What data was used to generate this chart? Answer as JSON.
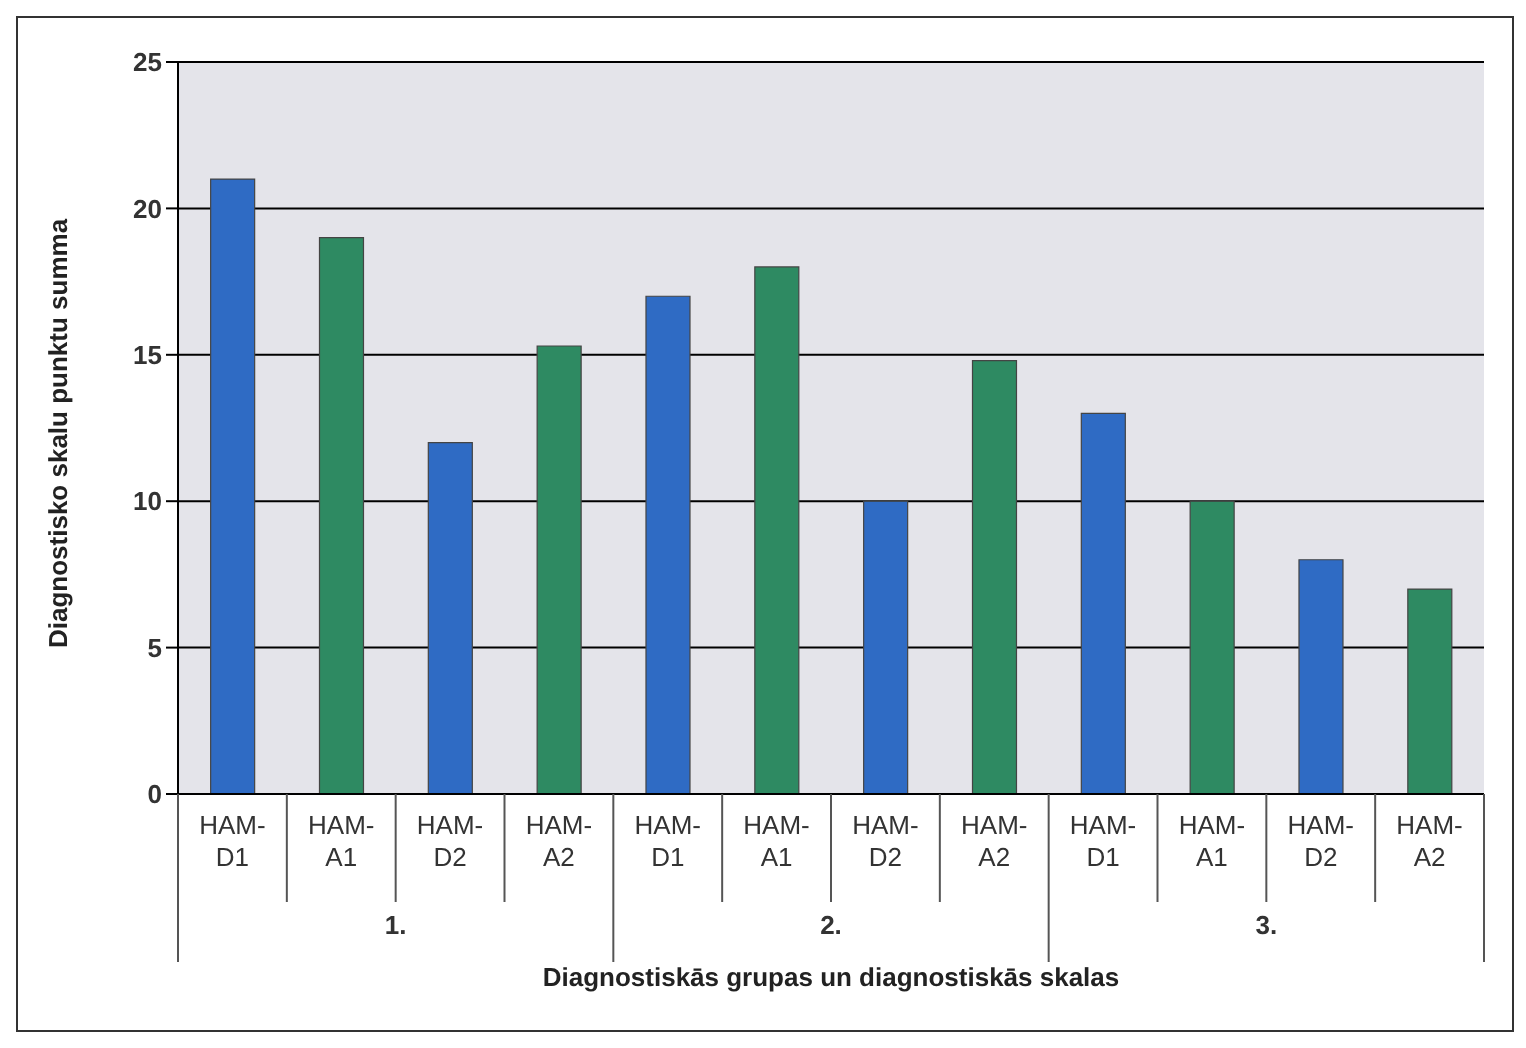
{
  "chart_data": {
    "type": "bar",
    "xlabel": "Diagnostiskās grupas un diagnostiskās skalas",
    "ylabel": "Diagnostisko skalu punktu summa",
    "categories": [
      "HAM-D1",
      "HAM-A1",
      "HAM-D2",
      "HAM-A2",
      "HAM-D1",
      "HAM-A1",
      "HAM-D2",
      "HAM-A2",
      "HAM-D1",
      "HAM-A1",
      "HAM-D2",
      "HAM-A2"
    ],
    "values": [
      21,
      19,
      12,
      15.3,
      17,
      18,
      10,
      14.8,
      13,
      10,
      8,
      7
    ],
    "colors": [
      "#2f6bc4",
      "#2e8a62",
      "#2f6bc4",
      "#2e8a62",
      "#2f6bc4",
      "#2e8a62",
      "#2f6bc4",
      "#2e8a62",
      "#2f6bc4",
      "#2e8a62",
      "#2f6bc4",
      "#2e8a62"
    ],
    "annotations": [
      "1.",
      "2.",
      "3."
    ],
    "ylim": [
      0,
      25
    ],
    "yticks": [
      0,
      5,
      10,
      15,
      20,
      25
    ],
    "grid": "y",
    "legend": false
  }
}
